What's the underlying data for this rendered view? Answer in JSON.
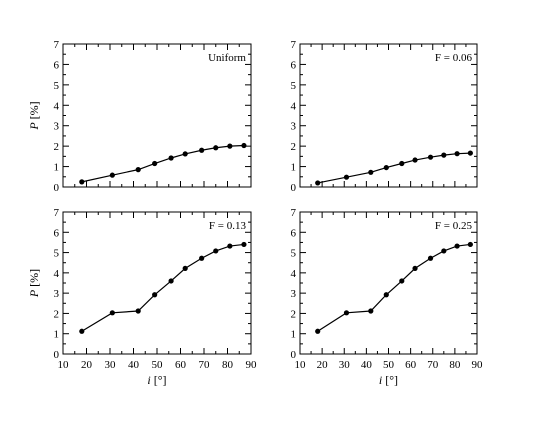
{
  "chart_data": [
    {
      "type": "line",
      "panel_label": "Uniform",
      "xlabel_var": "i",
      "xlabel_unit": "[°]",
      "ylabel_var": "P",
      "ylabel_unit": "[%]",
      "xlim": [
        10,
        90
      ],
      "ylim": [
        0,
        7
      ],
      "x_ticks": [
        10,
        20,
        30,
        40,
        50,
        60,
        70,
        80,
        90
      ],
      "y_ticks": [
        0,
        1,
        2,
        3,
        4,
        5,
        6,
        7
      ],
      "show_xticklabels": false,
      "show_xlabel": false,
      "show_yticklabels": true,
      "show_ylabel": true,
      "grid": false,
      "x": [
        18,
        31,
        42,
        49,
        56,
        62,
        69,
        75,
        81,
        87
      ],
      "y": [
        0.25,
        0.58,
        0.85,
        1.15,
        1.42,
        1.62,
        1.8,
        1.92,
        2.0,
        2.03
      ]
    },
    {
      "type": "line",
      "panel_label": "F = 0.06",
      "xlabel_var": "i",
      "xlabel_unit": "[°]",
      "ylabel_var": "P",
      "ylabel_unit": "[%]",
      "xlim": [
        10,
        90
      ],
      "ylim": [
        0,
        7
      ],
      "x_ticks": [
        10,
        20,
        30,
        40,
        50,
        60,
        70,
        80,
        90
      ],
      "y_ticks": [
        0,
        1,
        2,
        3,
        4,
        5,
        6,
        7
      ],
      "show_xticklabels": false,
      "show_xlabel": false,
      "show_yticklabels": true,
      "show_ylabel": false,
      "grid": false,
      "x": [
        18,
        31,
        42,
        49,
        56,
        62,
        69,
        75,
        81,
        87
      ],
      "y": [
        0.2,
        0.48,
        0.72,
        0.95,
        1.15,
        1.32,
        1.46,
        1.56,
        1.63,
        1.66
      ]
    },
    {
      "type": "line",
      "panel_label": "F = 0.13",
      "xlabel_var": "i",
      "xlabel_unit": "[°]",
      "ylabel_var": "P",
      "ylabel_unit": "[%]",
      "xlim": [
        10,
        90
      ],
      "ylim": [
        0,
        7
      ],
      "x_ticks": [
        10,
        20,
        30,
        40,
        50,
        60,
        70,
        80,
        90
      ],
      "y_ticks": [
        0,
        1,
        2,
        3,
        4,
        5,
        6,
        7
      ],
      "show_xticklabels": true,
      "show_xlabel": true,
      "show_yticklabels": true,
      "show_ylabel": true,
      "grid": false,
      "x": [
        18,
        31,
        42,
        49,
        56,
        62,
        69,
        75,
        81,
        87
      ],
      "y": [
        1.12,
        2.03,
        2.12,
        2.92,
        3.6,
        4.22,
        4.72,
        5.08,
        5.32,
        5.4
      ]
    },
    {
      "type": "line",
      "panel_label": "F = 0.25",
      "xlabel_var": "i",
      "xlabel_unit": "[°]",
      "ylabel_var": "P",
      "ylabel_unit": "[%]",
      "xlim": [
        10,
        90
      ],
      "ylim": [
        0,
        7
      ],
      "x_ticks": [
        10,
        20,
        30,
        40,
        50,
        60,
        70,
        80,
        90
      ],
      "y_ticks": [
        0,
        1,
        2,
        3,
        4,
        5,
        6,
        7
      ],
      "show_xticklabels": true,
      "show_xlabel": true,
      "show_yticklabels": true,
      "show_ylabel": false,
      "grid": false,
      "x": [
        18,
        31,
        42,
        49,
        56,
        62,
        69,
        75,
        81,
        87
      ],
      "y": [
        1.12,
        2.03,
        2.12,
        2.92,
        3.6,
        4.22,
        4.72,
        5.08,
        5.32,
        5.4
      ]
    }
  ]
}
